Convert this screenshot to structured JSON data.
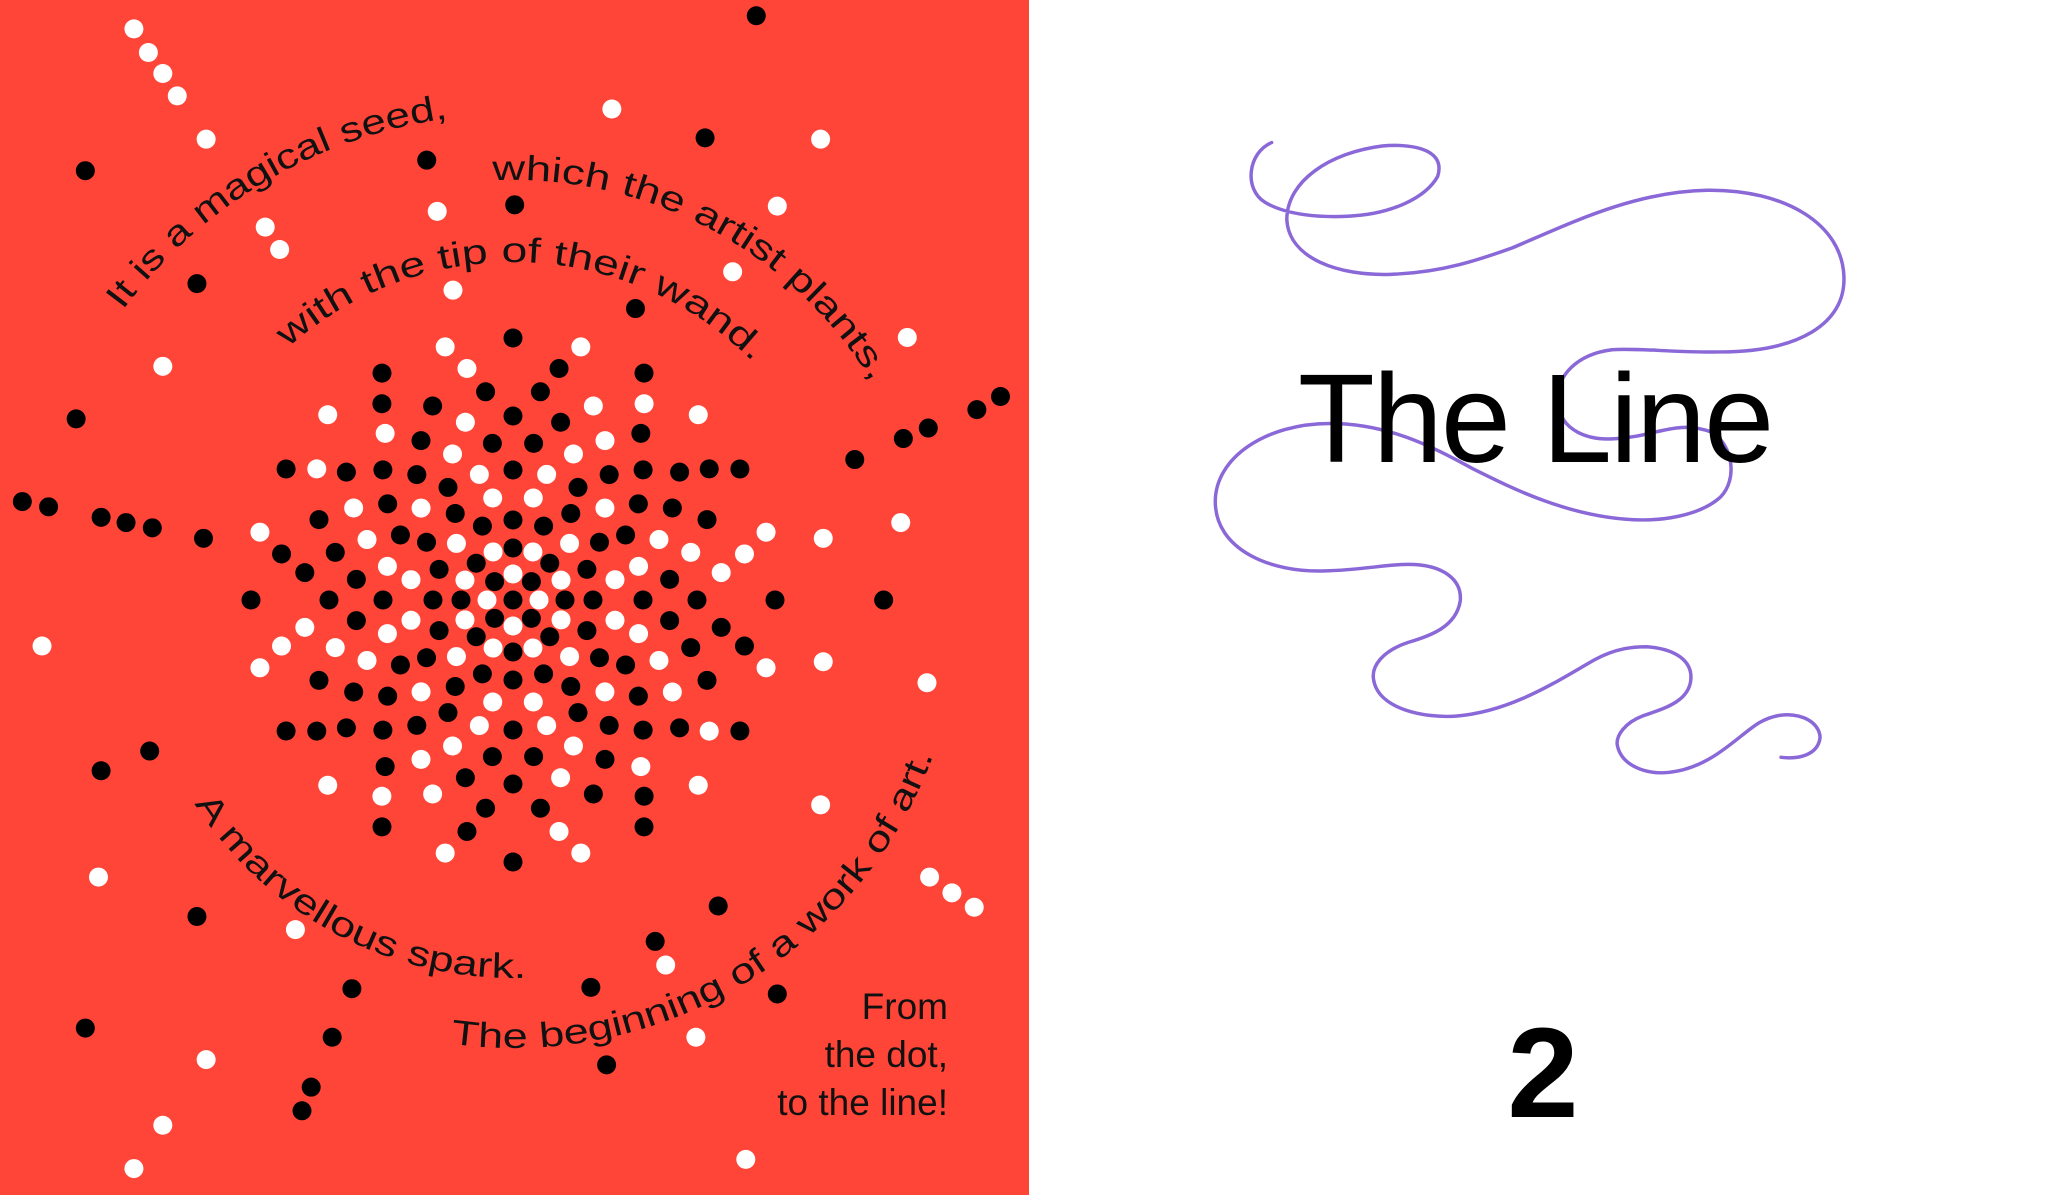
{
  "colors": {
    "left_background": "#ff4538",
    "dot_dark": "#000000",
    "dot_light": "#ffffff",
    "text": "#111111",
    "line": "#8a68d8",
    "right_background": "#ffffff"
  },
  "left_page": {
    "arc_texts": [
      "It is a magical seed,",
      "which the artist plants,",
      "with the tip of their wand.",
      "A marvellous spark.",
      "The beginning of a work of art."
    ],
    "closing_lines": [
      "From",
      "the dot,",
      "to the line!"
    ]
  },
  "right_page": {
    "title": "The Line",
    "page_number": "2"
  }
}
